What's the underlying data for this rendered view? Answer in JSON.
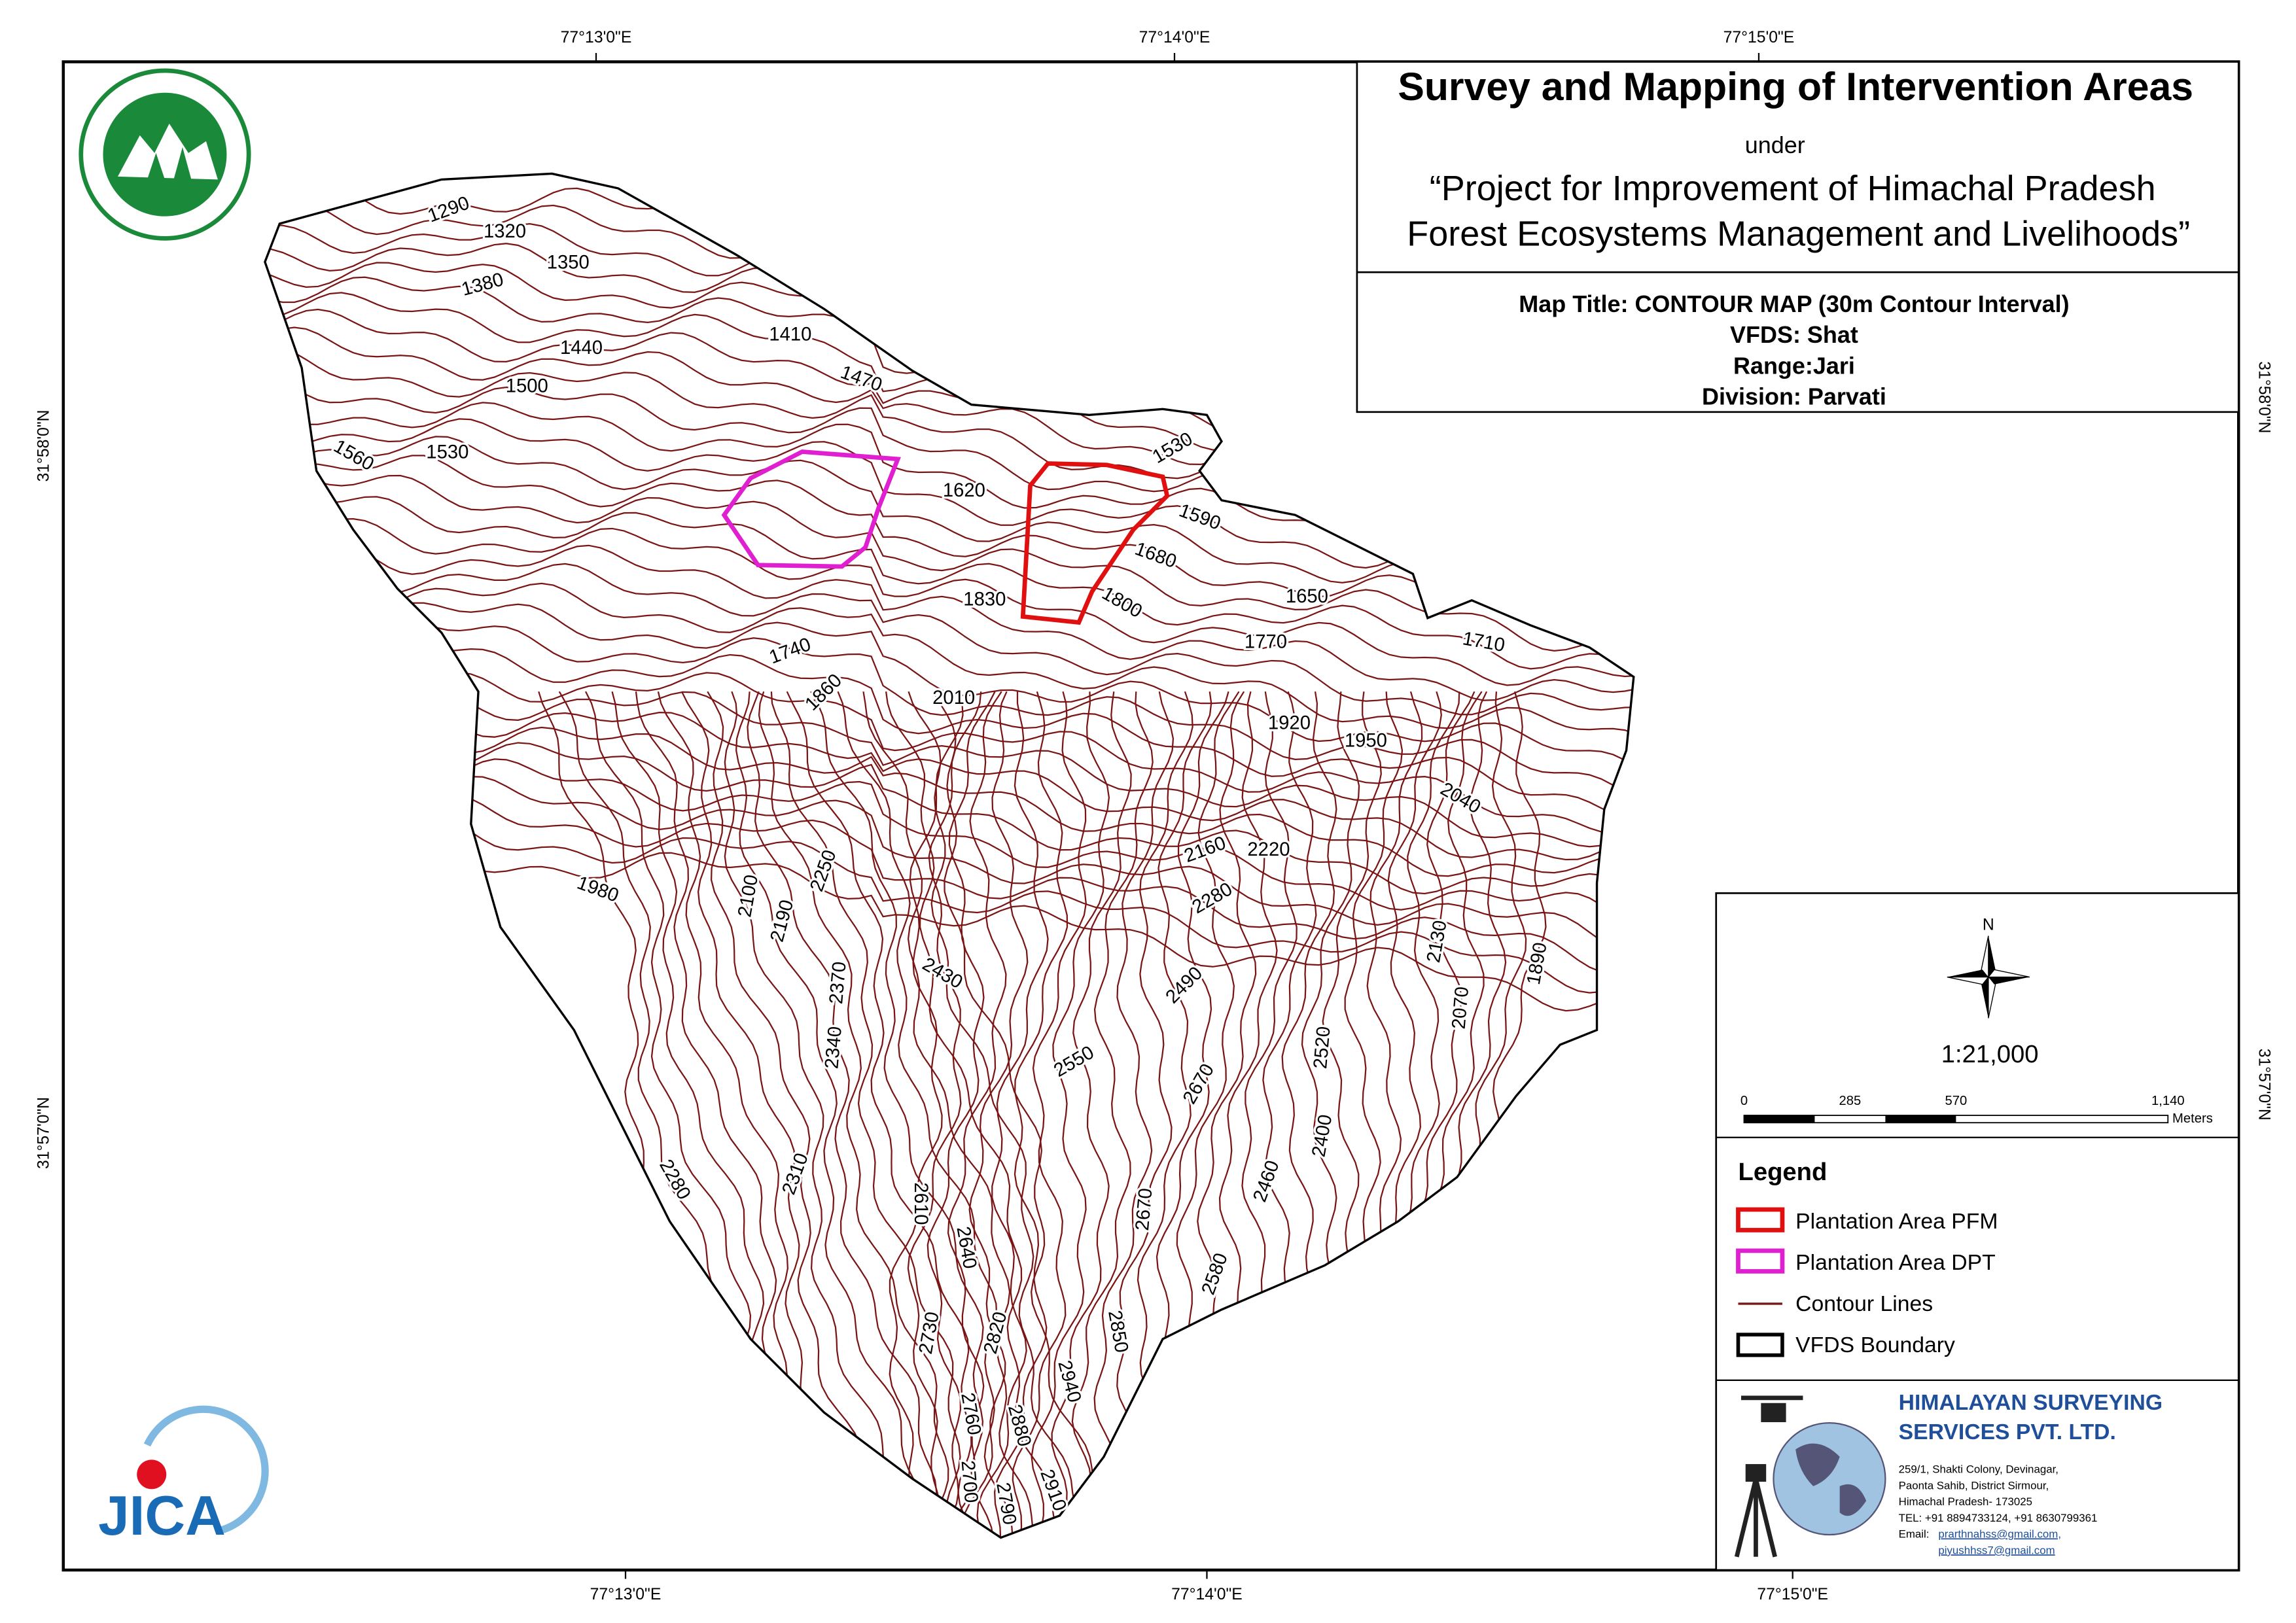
{
  "header": {
    "title": "Survey and Mapping of Intervention Areas",
    "under": "under",
    "project_line1": "“Project for Improvement of Himachal Pradesh",
    "project_line2": "Forest Ecosystems Management and Livelihoods”"
  },
  "map_info": {
    "map_title": "Map Title: CONTOUR MAP (30m Contour Interval)",
    "vfds": "VFDS: Shat",
    "range": "Range:Jari",
    "division": "Division: Parvati"
  },
  "graticule": {
    "top": [
      "77°13'0\"E",
      "77°14'0\"E",
      "77°15'0\"E"
    ],
    "bottom": [
      "77°13'0\"E",
      "77°14'0\"E",
      "77°15'0\"E"
    ],
    "left": [
      "31°58'0\"N",
      "31°57'0\"N"
    ],
    "right": [
      "31°58'0\"N",
      "31°57'0\"N"
    ]
  },
  "contour_labels": [
    1290,
    1320,
    1350,
    1380,
    1410,
    1440,
    1470,
    1500,
    1530,
    1560,
    1620,
    1530,
    1590,
    1680,
    1650,
    1830,
    1800,
    1770,
    1710,
    1740,
    1860,
    2010,
    1920,
    1950,
    2040,
    2160,
    2220,
    2280,
    1980,
    2100,
    2190,
    2250,
    2130,
    1890,
    2430,
    2370,
    2490,
    2070,
    2340,
    2520,
    2550,
    2670,
    2400,
    2460,
    2280,
    2310,
    2610,
    2670,
    2640,
    2580,
    2730,
    2820,
    2850,
    2940,
    2760,
    2880,
    2700,
    2790,
    2910
  ],
  "scale": {
    "north": "N",
    "ratio": "1:21,000",
    "ticks": [
      "0",
      "285",
      "570",
      "1,140"
    ],
    "unit": "Meters"
  },
  "legend": {
    "title": "Legend",
    "items": [
      "Plantation Area PFM",
      "Plantation Area DPT",
      "Contour Lines",
      "VFDS Boundary"
    ]
  },
  "company": {
    "name_line1": "HIMALAYAN SURVEYING",
    "name_line2": "SERVICES PVT. LTD.",
    "address": [
      "259/1, Shakti Colony, Devinagar,",
      "Paonta Sahib, District Sirmour,",
      "Himachal Pradesh- 173025",
      "TEL: +91 8894733124, +91 8630799361"
    ],
    "email_label": "Email:",
    "emails": [
      "prarthnahss@gmail.com,",
      "piyushhss7@gmail.com"
    ]
  },
  "logos": {
    "jica": "JICA"
  }
}
